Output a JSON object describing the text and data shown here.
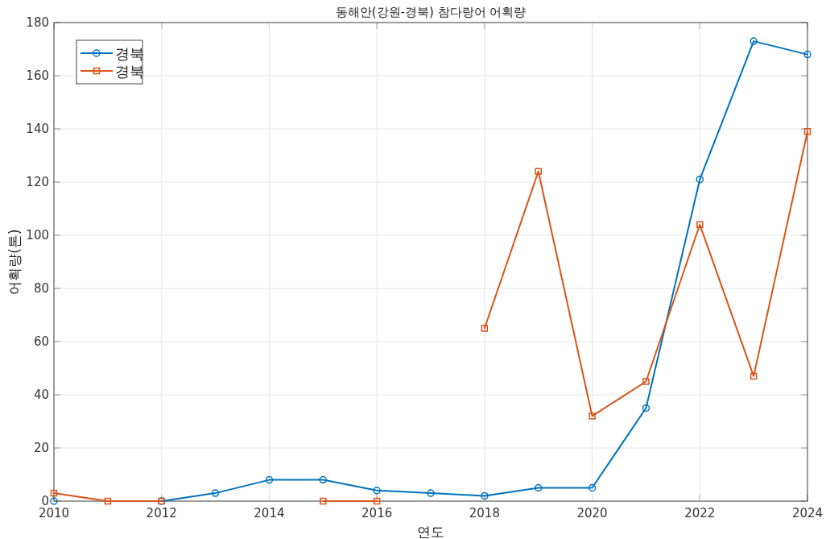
{
  "chart_data": {
    "type": "line",
    "title": "동해안(강원-경북) 참다랑어 어획량",
    "xlabel": "연도",
    "ylabel": "어획량(톤)",
    "x": [
      2010,
      2011,
      2012,
      2013,
      2014,
      2015,
      2016,
      2017,
      2018,
      2019,
      2020,
      2021,
      2022,
      2023,
      2024
    ],
    "series": [
      {
        "name": "경북",
        "color": "#0072bd",
        "marker": "circle",
        "values": [
          0,
          null,
          0,
          3,
          8,
          8,
          4,
          3,
          2,
          5,
          5,
          35,
          121,
          173,
          168
        ]
      },
      {
        "name": "경북",
        "color": "#d95319",
        "marker": "square",
        "values": [
          3,
          0,
          0,
          null,
          null,
          0,
          0,
          null,
          65,
          124,
          32,
          45,
          104,
          47,
          139
        ]
      }
    ],
    "xlim": [
      2010,
      2024
    ],
    "xticks": [
      2010,
      2012,
      2014,
      2016,
      2018,
      2020,
      2022,
      2024
    ],
    "ylim": [
      0,
      180
    ],
    "yticks": [
      0,
      20,
      40,
      60,
      80,
      100,
      120,
      140,
      160,
      180
    ],
    "grid": true,
    "legend": "top left",
    "line_style": "solid"
  }
}
